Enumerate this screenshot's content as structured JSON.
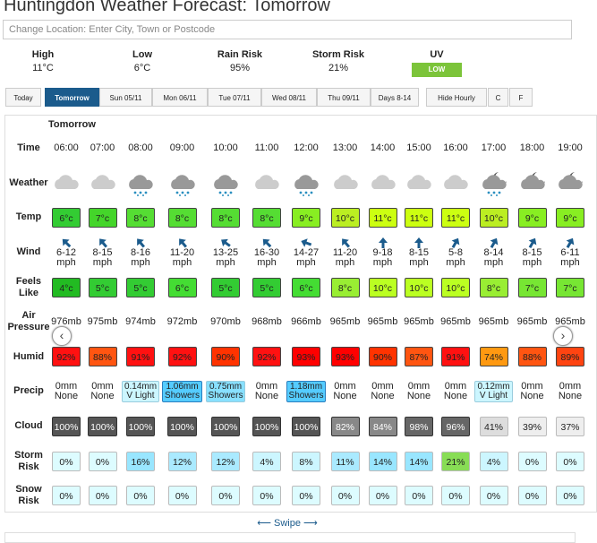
{
  "header": {
    "title": "Huntingdon Weather Forecast: Tomorrow"
  },
  "search": {
    "placeholder": "Change Location: Enter City, Town or Postcode"
  },
  "summary": [
    {
      "label": "High",
      "value": "11°C"
    },
    {
      "label": "Low",
      "value": "6°C"
    },
    {
      "label": "Rain Risk",
      "value": "95%"
    },
    {
      "label": "Storm Risk",
      "value": "21%"
    },
    {
      "label": "UV",
      "value": "LOW"
    }
  ],
  "tabs": [
    "Today",
    "Tomorrow",
    "Sun 05/11",
    "Mon 06/11",
    "Tue 07/11",
    "Wed 08/11",
    "Thu 09/11",
    "Days 8-14",
    "Hide Hourly",
    "C",
    "F"
  ],
  "forecast": {
    "day": "Tomorrow",
    "rows": [
      {
        "label": "Time",
        "cells": [
          "06:00",
          "07:00",
          "08:00",
          "09:00",
          "10:00",
          "11:00",
          "12:00",
          "13:00",
          "14:00",
          "15:00",
          "16:00",
          "17:00",
          "18:00",
          "19:00"
        ]
      },
      {
        "label": "Weather"
      },
      {
        "label": "Temp",
        "cells": [
          "6°c",
          "7°c",
          "8°c",
          "8°c",
          "8°c",
          "8°c",
          "9°c",
          "10°c",
          "11°c",
          "11°c",
          "11°c",
          "10°c",
          "9°c",
          "9°c"
        ]
      },
      {
        "label": "Wind",
        "cells": [
          {
            "speed": "6-12",
            "unit": "mph"
          },
          {
            "speed": "8-15",
            "unit": "mph"
          },
          {
            "speed": "8-16",
            "unit": "mph"
          },
          {
            "speed": "11-20",
            "unit": "mph"
          },
          {
            "speed": "13-25",
            "unit": "mph"
          },
          {
            "speed": "16-30",
            "unit": "mph"
          },
          {
            "speed": "14-27",
            "unit": "mph"
          },
          {
            "speed": "11-20",
            "unit": "mph"
          },
          {
            "speed": "9-18",
            "unit": "mph"
          },
          {
            "speed": "8-15",
            "unit": "mph"
          },
          {
            "speed": "5-8",
            "unit": "mph"
          },
          {
            "speed": "8-14",
            "unit": "mph"
          },
          {
            "speed": "8-15",
            "unit": "mph"
          },
          {
            "speed": "6-11",
            "unit": "mph"
          }
        ]
      },
      {
        "label": "Feels Like",
        "cells": [
          "4°c",
          "5°c",
          "5°c",
          "6°c",
          "5°c",
          "5°c",
          "6°c",
          "8°c",
          "10°c",
          "10°c",
          "10°c",
          "8°c",
          "7°c",
          "7°c"
        ]
      },
      {
        "label": "Air Pressure",
        "cells": [
          "976mb",
          "975mb",
          "974mb",
          "972mb",
          "970mb",
          "968mb",
          "966mb",
          "965mb",
          "965mb",
          "965mb",
          "965mb",
          "965mb",
          "965mb",
          "965mb"
        ]
      },
      {
        "label": "Humid",
        "cells": [
          "92%",
          "88%",
          "91%",
          "92%",
          "90%",
          "92%",
          "93%",
          "93%",
          "90%",
          "87%",
          "91%",
          "74%",
          "88%",
          "89%"
        ]
      },
      {
        "label": "Precip",
        "cells": [
          {
            "amount": "0mm",
            "type": "None"
          },
          {
            "amount": "0mm",
            "type": "None"
          },
          {
            "amount": "0.14mm",
            "type": "V Light"
          },
          {
            "amount": "1.06mm",
            "type": "Showers"
          },
          {
            "amount": "0.75mm",
            "type": "Showers"
          },
          {
            "amount": "0mm",
            "type": "None"
          },
          {
            "amount": "1.18mm",
            "type": "Showers"
          },
          {
            "amount": "0mm",
            "type": "None"
          },
          {
            "amount": "0mm",
            "type": "None"
          },
          {
            "amount": "0mm",
            "type": "None"
          },
          {
            "amount": "0mm",
            "type": "None"
          },
          {
            "amount": "0.12mm",
            "type": "V Light"
          },
          {
            "amount": "0mm",
            "type": "None"
          },
          {
            "amount": "0mm",
            "type": "None"
          }
        ]
      },
      {
        "label": "Cloud",
        "cells": [
          "100%",
          "100%",
          "100%",
          "100%",
          "100%",
          "100%",
          "100%",
          "82%",
          "84%",
          "98%",
          "96%",
          "41%",
          "39%",
          "37%"
        ]
      },
      {
        "label": "Storm Risk",
        "cells": [
          "0%",
          "0%",
          "16%",
          "12%",
          "12%",
          "4%",
          "8%",
          "11%",
          "14%",
          "14%",
          "21%",
          "4%",
          "0%",
          "0%"
        ]
      },
      {
        "label": "Snow Risk",
        "cells": [
          "0%",
          "0%",
          "0%",
          "0%",
          "0%",
          "0%",
          "0%",
          "0%",
          "0%",
          "0%",
          "0%",
          "0%",
          "0%",
          "0%"
        ]
      }
    ]
  },
  "footer": {
    "swipe": "Swipe"
  }
}
